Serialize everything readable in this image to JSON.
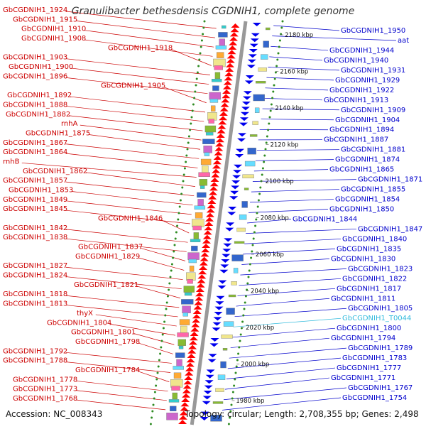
{
  "title": "Granulibacter bethesdensis CGDNIH1, complete genome",
  "accession": "Accession: NC_008343",
  "topology": "Topology: circular; Length: 2,708,355 bp; Genes: 2,498",
  "colors": {
    "left_label": "#cc0000",
    "right_label": "#0000cc",
    "highlight_label": "#33bbdd",
    "forward_arrow": "#ff0000",
    "reverse_arrow": "#0000ee",
    "tick_dot": "#2e8b22",
    "backbone": "#999999"
  },
  "left_labels": [
    "GbCGDNIH1_1924",
    "GbCGDNIH1_1915",
    "GbCGDNIH1_1910",
    "GbCGDNIH1_1908",
    "GbCGDNIH1_1918",
    "GbCGDNIH1_1903",
    "GbCGDNIH1_1900",
    "GbCGDNIH1_1896",
    "GbCGDNIH1_1905",
    "GbCGDNIH1_1892",
    "GbCGDNIH1_1888",
    "GbCGDNIH1_1882",
    "rnhA",
    "GbCGDNIH1_1875",
    "GbCGDNIH1_1867",
    "GbCGDNIH1_1864",
    "rnhB",
    "GbCGDNIH1_1862",
    "GbCGDNIH1_1857",
    "GbCGDNIH1_1853",
    "GbCGDNIH1_1849",
    "GbCGDNIH1_1845",
    "GbCGDNIH1_1846",
    "GbCGDNIH1_1842",
    "GbCGDNIH1_1838",
    "GbCGDNIH1_1837",
    "GbCGDNIH1_1829",
    "GbCGDNIH1_1827",
    "GbCGDNIH1_1824",
    "GbCGDNIH1_1821",
    "GbCGDNIH1_1818",
    "GbCGDNIH1_1813",
    "thyX",
    "GbCGDNIH1_1804",
    "GbCGDNIH1_1801",
    "GbCGDNIH1_1798",
    "GbCGDNIH1_1792",
    "GbCGDNIH1_1788",
    "GbCGDNIH1_1784",
    "GbCGDNIH1_1778",
    "GbCGDNIH1_1773",
    "GbCGDNIH1_1768"
  ],
  "right_labels": [
    "GbCGDNIH1_1950",
    "aat",
    "GbCGDNIH1_1944",
    "GbCGDNIH1_1940",
    "GbCGDNIH1_1931",
    "GbCGDNIH1_1929",
    "GbCGDNIH1_1922",
    "GbCGDNIH1_1913",
    "GbCGDNIH1_1909",
    "GbCGDNIH1_1904",
    "GbCGDNIH1_1894",
    "GbCGDNIH1_1887",
    "GbCGDNIH1_1881",
    "GbCGDNIH1_1874",
    "GbCGDNIH1_1865",
    "GbCGDNIH1_1871",
    "GbCGDNIH1_1855",
    "GbCGDNIH1_1854",
    "GbCGDNIH1_1850",
    "GbCGDNIH1_1844",
    "GbCGDNIH1_1847",
    "GbCGDNIH1_1840",
    "GbCGDNIH1_1835",
    "GbCGDNIH1_1830",
    "GbCGDNIH1_1823",
    "GbCGDNIH1_1822",
    "GbCGDNIH1_1817",
    "GbCGDNIH1_1811",
    "GbCGDNIH1_1805",
    "GbCGDNIH1_T0044",
    "GbCGDNIH1_1800",
    "GbCGDNIH1_1794",
    "GbCGDNIH1_1789",
    "GbCGDNIH1_1783",
    "GbCGDNIH1_1777",
    "GbCGDNIH1_1771",
    "GbCGDNIH1_1767",
    "GbCGDNIH1_1754"
  ],
  "highlighted_label": "GbCGDNIH1_T0044",
  "kbp_ticks": [
    "2180 kbp",
    "2160 kbp",
    "2140 kbp",
    "2120 kbp",
    "2100 kbp",
    "2080 kbp",
    "2060 kbp",
    "2040 kbp",
    "2020 kbp",
    "2000 kbp",
    "1980 kbp"
  ]
}
